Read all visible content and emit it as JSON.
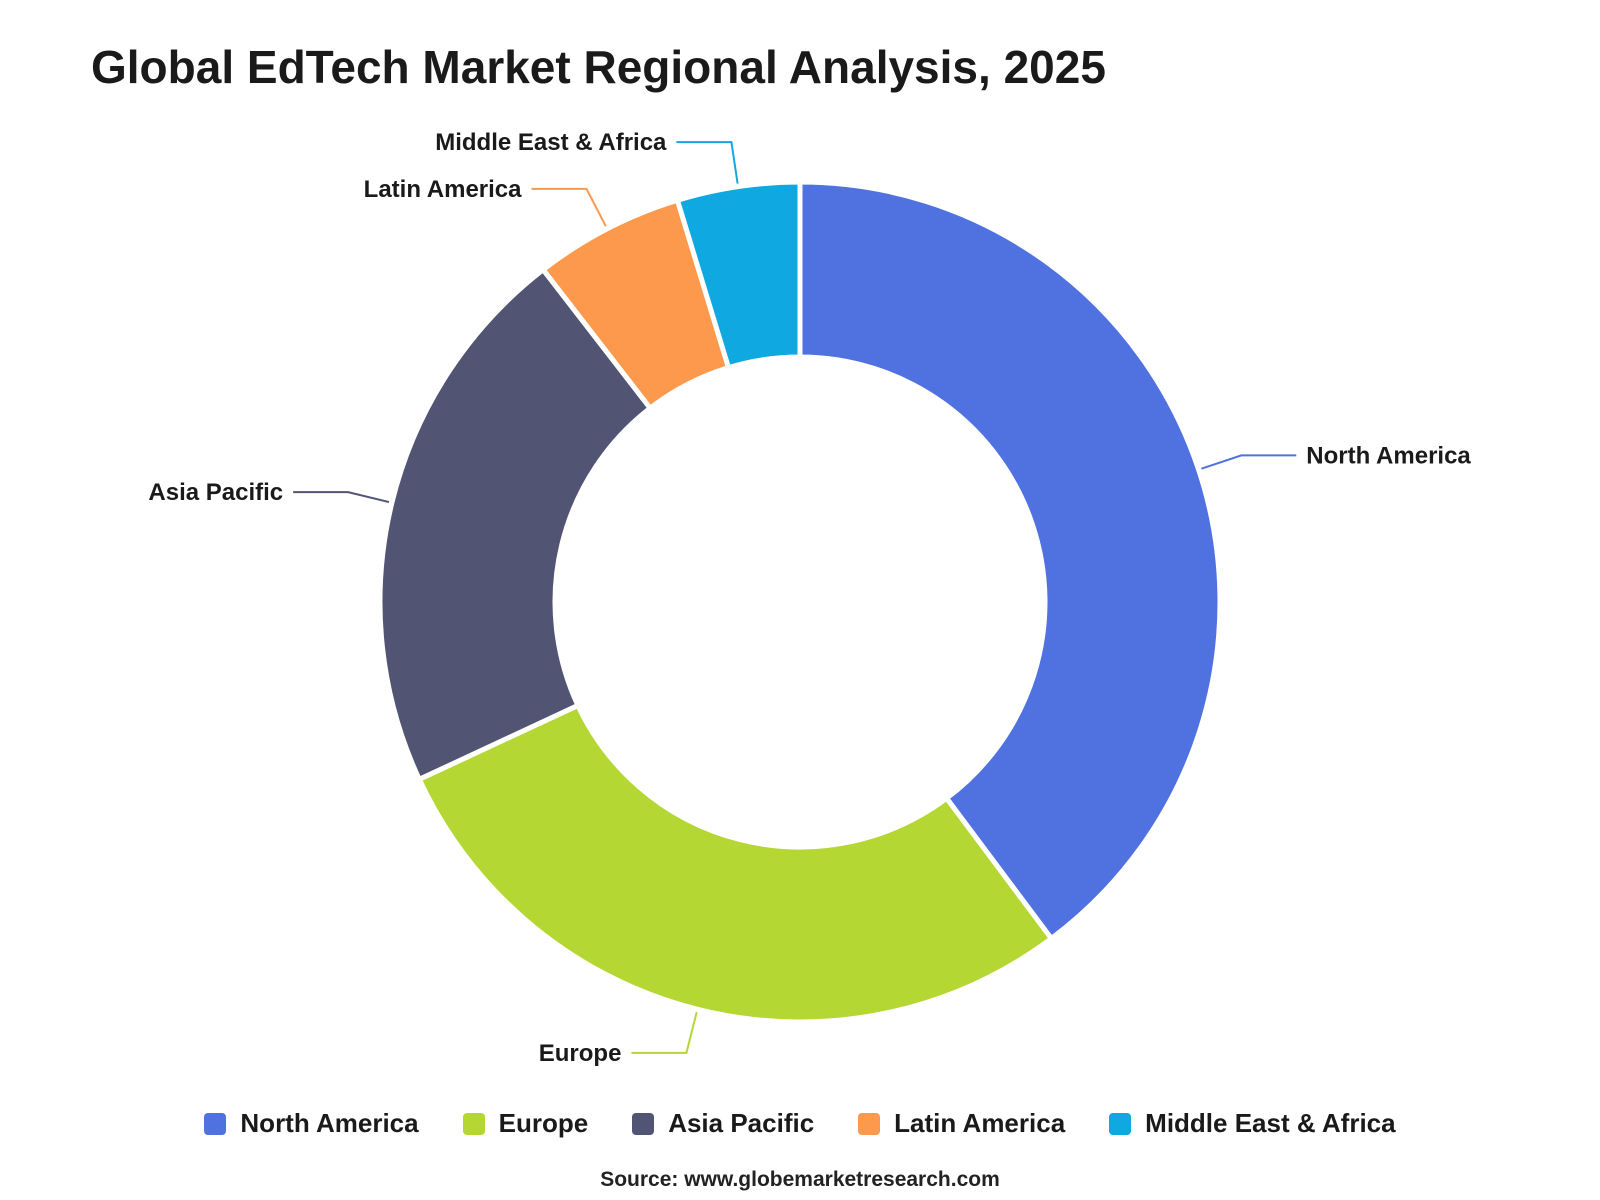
{
  "title": "Global EdTech Market Regional Analysis, 2025",
  "source": "Source: www.globemarketresearch.com",
  "colors": {
    "north_america": "#5072e0",
    "europe": "#b5d733",
    "asia_pacific": "#515472",
    "latin_america": "#fd994d",
    "middle_east_africa": "#10a8e0"
  },
  "chart_data": {
    "type": "pie",
    "variant": "donut",
    "title": "Global EdTech Market Regional Analysis, 2025",
    "legend_position": "bottom",
    "categories": [
      "North America",
      "Europe",
      "Asia Pacific",
      "Latin America",
      "Middle East & Africa"
    ],
    "values": [
      38,
      27,
      20.5,
      5.5,
      4.5
    ],
    "slices": [
      {
        "label": "North America",
        "value": 38,
        "color": "#5072e0"
      },
      {
        "label": "Europe",
        "value": 27,
        "color": "#b5d733"
      },
      {
        "label": "Asia Pacific",
        "value": 20.5,
        "color": "#515472"
      },
      {
        "label": "Latin America",
        "value": 5.5,
        "color": "#fd994d"
      },
      {
        "label": "Middle East & Africa",
        "value": 4.5,
        "color": "#10a8e0"
      }
    ]
  },
  "legend": {
    "items": [
      {
        "label": "North America",
        "color": "#5072e0"
      },
      {
        "label": "Europe",
        "color": "#b5d733"
      },
      {
        "label": "Asia Pacific",
        "color": "#515472"
      },
      {
        "label": "Latin America",
        "color": "#fd994d"
      },
      {
        "label": "Middle East & Africa",
        "color": "#10a8e0"
      }
    ]
  }
}
